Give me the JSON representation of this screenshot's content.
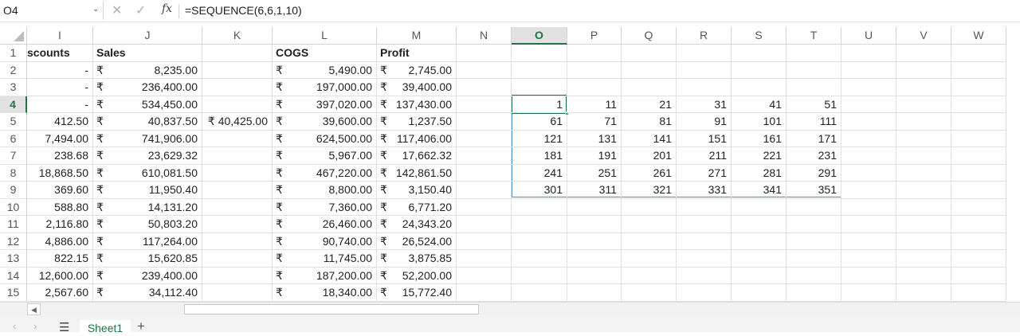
{
  "formula_bar": {
    "name_box": "O4",
    "cancel_icon": "close-icon",
    "enter_icon": "check-icon",
    "fx_label": "fx",
    "formula": "=SEQUENCE(6,6,1,10)"
  },
  "columns": [
    "I",
    "J",
    "K",
    "L",
    "M",
    "N",
    "O",
    "P",
    "Q",
    "R",
    "S",
    "T",
    "U",
    "V",
    "W"
  ],
  "selected_column": "O",
  "rows": [
    "1",
    "2",
    "3",
    "4",
    "5",
    "6",
    "7",
    "8",
    "9",
    "10",
    "11",
    "12",
    "13",
    "14",
    "15"
  ],
  "selected_row": "4",
  "headers": {
    "discounts": "scounts",
    "sales": "Sales",
    "cogs": "COGS",
    "profit": "Profit"
  },
  "currency_symbol": "₹",
  "table_rows": [
    {
      "discounts": "-",
      "sales": "8,235.00",
      "k": "",
      "cogs": "5,490.00",
      "profit": "2,745.00"
    },
    {
      "discounts": "-",
      "sales": "236,400.00",
      "k": "",
      "cogs": "197,000.00",
      "profit": "39,400.00"
    },
    {
      "discounts": "-",
      "sales": "534,450.00",
      "k": "",
      "cogs": "397,020.00",
      "profit": "137,430.00"
    },
    {
      "discounts": "412.50",
      "sales": "40,837.50",
      "k": "₹ 40,425.00",
      "cogs": "39,600.00",
      "profit": "1,237.50"
    },
    {
      "discounts": "7,494.00",
      "sales": "741,906.00",
      "k": "",
      "cogs": "624,500.00",
      "profit": "117,406.00"
    },
    {
      "discounts": "238.68",
      "sales": "23,629.32",
      "k": "",
      "cogs": "5,967.00",
      "profit": "17,662.32"
    },
    {
      "discounts": "18,868.50",
      "sales": "610,081.50",
      "k": "",
      "cogs": "467,220.00",
      "profit": "142,861.50"
    },
    {
      "discounts": "369.60",
      "sales": "11,950.40",
      "k": "",
      "cogs": "8,800.00",
      "profit": "3,150.40"
    },
    {
      "discounts": "588.80",
      "sales": "14,131.20",
      "k": "",
      "cogs": "7,360.00",
      "profit": "6,771.20"
    },
    {
      "discounts": "2,116.80",
      "sales": "50,803.20",
      "k": "",
      "cogs": "26,460.00",
      "profit": "24,343.20"
    },
    {
      "discounts": "4,886.00",
      "sales": "117,264.00",
      "k": "",
      "cogs": "90,740.00",
      "profit": "26,524.00"
    },
    {
      "discounts": "822.15",
      "sales": "15,620.85",
      "k": "",
      "cogs": "11,745.00",
      "profit": "3,875.85"
    },
    {
      "discounts": "12,600.00",
      "sales": "239,400.00",
      "k": "",
      "cogs": "187,200.00",
      "profit": "52,200.00"
    },
    {
      "discounts": "2,567.60",
      "sales": "34,112.40",
      "k": "",
      "cogs": "18,340.00",
      "profit": "15,772.40"
    }
  ],
  "sequence": [
    [
      "1",
      "11",
      "21",
      "31",
      "41",
      "51"
    ],
    [
      "61",
      "71",
      "81",
      "91",
      "101",
      "111"
    ],
    [
      "121",
      "131",
      "141",
      "151",
      "161",
      "171"
    ],
    [
      "181",
      "191",
      "201",
      "211",
      "221",
      "231"
    ],
    [
      "241",
      "251",
      "261",
      "271",
      "281",
      "291"
    ],
    [
      "301",
      "311",
      "321",
      "331",
      "341",
      "351"
    ]
  ],
  "sheet_tabs": {
    "menu_icon": "hamburger-icon",
    "active": "Sheet1",
    "add_icon": "plus-icon"
  }
}
